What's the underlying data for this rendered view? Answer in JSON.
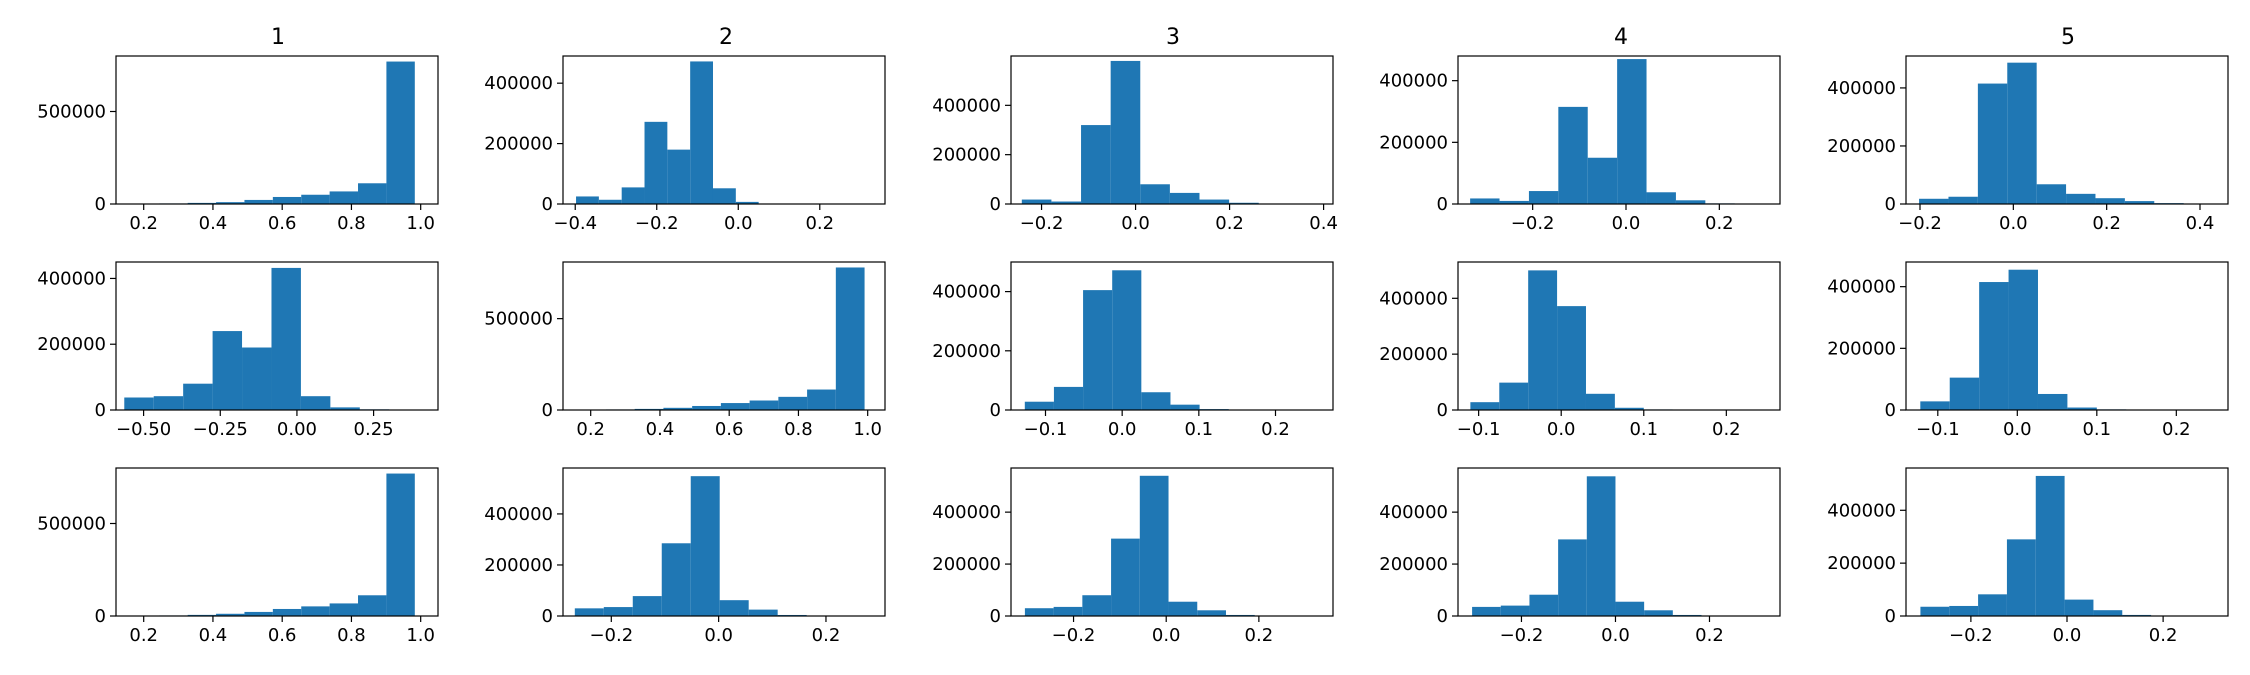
{
  "column_titles": [
    "1",
    "2",
    "3",
    "4",
    "5"
  ],
  "bar_color": "#1f77b4",
  "chart_data": [
    {
      "type": "bar",
      "row": 0,
      "col": 0,
      "title": "1",
      "xlim": [
        0.12,
        1.05
      ],
      "ylim": [
        0,
        800000
      ],
      "xticks": [
        0.2,
        0.4,
        0.6,
        0.8,
        1.0
      ],
      "xtick_labels": [
        "0.2",
        "0.4",
        "0.6",
        "0.8",
        "1.0"
      ],
      "yticks": [
        0,
        500000
      ],
      "ytick_labels": [
        "0",
        "500000"
      ],
      "bin_edges": [
        0.163,
        0.245,
        0.327,
        0.409,
        0.491,
        0.573,
        0.655,
        0.737,
        0.819,
        0.901,
        0.983
      ],
      "values": [
        2000,
        3000,
        6000,
        10000,
        22000,
        38000,
        50000,
        68000,
        112000,
        770000
      ]
    },
    {
      "type": "bar",
      "row": 0,
      "col": 1,
      "title": "2",
      "xlim": [
        -0.43,
        0.36
      ],
      "ylim": [
        0,
        490000
      ],
      "xticks": [
        -0.4,
        -0.2,
        0.0,
        0.2
      ],
      "xtick_labels": [
        "−0.4",
        "−0.2",
        "0.0",
        "0.2"
      ],
      "yticks": [
        0,
        200000,
        400000
      ],
      "ytick_labels": [
        "0",
        "200000",
        "400000"
      ],
      "bin_edges": [
        -0.398,
        -0.342,
        -0.286,
        -0.23,
        -0.174,
        -0.118,
        -0.062,
        -0.006,
        0.05,
        0.106,
        0.162
      ],
      "values": [
        25000,
        14000,
        55000,
        272000,
        180000,
        472000,
        52000,
        7000,
        1000,
        500
      ]
    },
    {
      "type": "bar",
      "row": 0,
      "col": 2,
      "title": "3",
      "xlim": [
        -0.265,
        0.42
      ],
      "ylim": [
        0,
        600000
      ],
      "xticks": [
        -0.2,
        0.0,
        0.2,
        0.4
      ],
      "xtick_labels": [
        "−0.2",
        "0.0",
        "0.2",
        "0.4"
      ],
      "yticks": [
        0,
        200000,
        400000
      ],
      "ytick_labels": [
        "0",
        "200000",
        "400000"
      ],
      "bin_edges": [
        -0.242,
        -0.179,
        -0.116,
        -0.053,
        0.01,
        0.073,
        0.136,
        0.199,
        0.262,
        0.325,
        0.388
      ],
      "values": [
        18000,
        10000,
        320000,
        580000,
        80000,
        45000,
        18000,
        5000,
        2000,
        1000
      ]
    },
    {
      "type": "bar",
      "row": 0,
      "col": 3,
      "title": "4",
      "xlim": [
        -0.36,
        0.33
      ],
      "ylim": [
        0,
        480000
      ],
      "xticks": [
        -0.2,
        0.0,
        0.2
      ],
      "xtick_labels": [
        "−0.2",
        "0.0",
        "0.2"
      ],
      "yticks": [
        0,
        200000,
        400000
      ],
      "ytick_labels": [
        "0",
        "200000",
        "400000"
      ],
      "bin_edges": [
        -0.334,
        -0.271,
        -0.208,
        -0.145,
        -0.082,
        -0.019,
        0.044,
        0.107,
        0.17,
        0.233,
        0.296
      ],
      "values": [
        18000,
        10000,
        42000,
        315000,
        150000,
        470000,
        38000,
        12000,
        2000,
        1000
      ]
    },
    {
      "type": "bar",
      "row": 0,
      "col": 4,
      "title": "5",
      "xlim": [
        -0.23,
        0.46
      ],
      "ylim": [
        0,
        510000
      ],
      "xticks": [
        -0.2,
        0.0,
        0.2,
        0.4
      ],
      "xtick_labels": [
        "−0.2",
        "0.0",
        "0.2",
        "0.4"
      ],
      "yticks": [
        0,
        200000,
        400000
      ],
      "ytick_labels": [
        "0",
        "200000",
        "400000"
      ],
      "bin_edges": [
        -0.202,
        -0.139,
        -0.076,
        -0.013,
        0.05,
        0.113,
        0.176,
        0.239,
        0.302,
        0.365,
        0.428
      ],
      "values": [
        18000,
        25000,
        415000,
        487000,
        68000,
        35000,
        20000,
        10000,
        3000,
        1000
      ]
    },
    {
      "type": "bar",
      "row": 1,
      "col": 0,
      "title": "",
      "xlim": [
        -0.59,
        0.46
      ],
      "ylim": [
        0,
        450000
      ],
      "xticks": [
        -0.5,
        -0.25,
        0.0,
        0.25
      ],
      "xtick_labels": [
        "−0.50",
        "−0.25",
        "0.00",
        "0.25"
      ],
      "yticks": [
        0,
        200000,
        400000
      ],
      "ytick_labels": [
        "0",
        "200000",
        "400000"
      ],
      "bin_edges": [
        -0.563,
        -0.467,
        -0.371,
        -0.275,
        -0.179,
        -0.083,
        0.013,
        0.109,
        0.205,
        0.301,
        0.397
      ],
      "values": [
        38000,
        42000,
        80000,
        240000,
        190000,
        432000,
        42000,
        8000,
        2000,
        500
      ]
    },
    {
      "type": "bar",
      "row": 1,
      "col": 1,
      "title": "",
      "xlim": [
        0.12,
        1.05
      ],
      "ylim": [
        0,
        810000
      ],
      "xticks": [
        0.2,
        0.4,
        0.6,
        0.8,
        1.0
      ],
      "xtick_labels": [
        "0.2",
        "0.4",
        "0.6",
        "0.8",
        "1.0"
      ],
      "yticks": [
        0,
        500000
      ],
      "ytick_labels": [
        "0",
        "500000"
      ],
      "bin_edges": [
        0.161,
        0.244,
        0.327,
        0.41,
        0.493,
        0.576,
        0.659,
        0.742,
        0.825,
        0.908,
        0.991
      ],
      "values": [
        2000,
        3000,
        6000,
        12000,
        22000,
        38000,
        52000,
        72000,
        112000,
        780000
      ]
    },
    {
      "type": "bar",
      "row": 1,
      "col": 2,
      "title": "",
      "xlim": [
        -0.145,
        0.275
      ],
      "ylim": [
        0,
        500000
      ],
      "xticks": [
        -0.1,
        0.0,
        0.1,
        0.2
      ],
      "xtick_labels": [
        "−0.1",
        "0.0",
        "0.1",
        "0.2"
      ],
      "yticks": [
        0,
        200000,
        400000
      ],
      "ytick_labels": [
        "0",
        "200000",
        "400000"
      ],
      "bin_edges": [
        -0.127,
        -0.089,
        -0.051,
        -0.013,
        0.025,
        0.063,
        0.101,
        0.139,
        0.177,
        0.215,
        0.253
      ],
      "values": [
        28000,
        78000,
        405000,
        472000,
        60000,
        18000,
        3000,
        1000,
        500,
        300
      ]
    },
    {
      "type": "bar",
      "row": 1,
      "col": 3,
      "title": "",
      "xlim": [
        -0.125,
        0.265
      ],
      "ylim": [
        0,
        530000
      ],
      "xticks": [
        -0.1,
        0.0,
        0.1,
        0.2
      ],
      "xtick_labels": [
        "−0.1",
        "0.0",
        "0.1",
        "0.2"
      ],
      "yticks": [
        0,
        200000,
        400000
      ],
      "ytick_labels": [
        "0",
        "200000",
        "400000"
      ],
      "bin_edges": [
        -0.11,
        -0.075,
        -0.04,
        -0.005,
        0.03,
        0.065,
        0.1,
        0.135,
        0.17,
        0.205,
        0.24
      ],
      "values": [
        28000,
        98000,
        500000,
        372000,
        58000,
        8000,
        2000,
        1000,
        500,
        300
      ]
    },
    {
      "type": "bar",
      "row": 1,
      "col": 4,
      "title": "",
      "xlim": [
        -0.14,
        0.265
      ],
      "ylim": [
        0,
        480000
      ],
      "xticks": [
        -0.1,
        0.0,
        0.1,
        0.2
      ],
      "xtick_labels": [
        "−0.1",
        "0.0",
        "0.1",
        "0.2"
      ],
      "yticks": [
        0,
        200000,
        400000
      ],
      "ytick_labels": [
        "0",
        "200000",
        "400000"
      ],
      "bin_edges": [
        -0.122,
        -0.085,
        -0.048,
        -0.011,
        0.026,
        0.063,
        0.1,
        0.137,
        0.174,
        0.211,
        0.248
      ],
      "values": [
        28000,
        105000,
        415000,
        455000,
        52000,
        8000,
        2000,
        1000,
        500,
        300
      ]
    },
    {
      "type": "bar",
      "row": 2,
      "col": 0,
      "title": "",
      "xlim": [
        0.12,
        1.05
      ],
      "ylim": [
        0,
        800000
      ],
      "xticks": [
        0.2,
        0.4,
        0.6,
        0.8,
        1.0
      ],
      "xtick_labels": [
        "0.2",
        "0.4",
        "0.6",
        "0.8",
        "1.0"
      ],
      "yticks": [
        0,
        500000
      ],
      "ytick_labels": [
        "0",
        "500000"
      ],
      "bin_edges": [
        0.163,
        0.245,
        0.327,
        0.409,
        0.491,
        0.573,
        0.655,
        0.737,
        0.819,
        0.901,
        0.983
      ],
      "values": [
        2000,
        3000,
        6000,
        12000,
        22000,
        38000,
        52000,
        68000,
        112000,
        770000
      ]
    },
    {
      "type": "bar",
      "row": 2,
      "col": 1,
      "title": "",
      "xlim": [
        -0.29,
        0.31
      ],
      "ylim": [
        0,
        580000
      ],
      "xticks": [
        -0.2,
        0.0,
        0.2
      ],
      "xtick_labels": [
        "−0.2",
        "0.0",
        "0.2"
      ],
      "yticks": [
        0,
        200000,
        400000
      ],
      "ytick_labels": [
        "0",
        "200000",
        "400000"
      ],
      "bin_edges": [
        -0.268,
        -0.214,
        -0.16,
        -0.106,
        -0.052,
        0.002,
        0.056,
        0.11,
        0.164,
        0.218,
        0.272
      ],
      "values": [
        30000,
        35000,
        78000,
        285000,
        548000,
        62000,
        25000,
        4000,
        1000,
        500
      ]
    },
    {
      "type": "bar",
      "row": 2,
      "col": 2,
      "title": "",
      "xlim": [
        -0.335,
        0.36
      ],
      "ylim": [
        0,
        570000
      ],
      "xticks": [
        -0.2,
        0.0,
        0.2
      ],
      "xtick_labels": [
        "−0.2",
        "0.0",
        "0.2"
      ],
      "yticks": [
        0,
        200000,
        400000
      ],
      "ytick_labels": [
        "0",
        "200000",
        "400000"
      ],
      "bin_edges": [
        -0.305,
        -0.243,
        -0.181,
        -0.119,
        -0.057,
        0.005,
        0.067,
        0.129,
        0.191,
        0.253,
        0.315
      ],
      "values": [
        30000,
        35000,
        80000,
        298000,
        540000,
        55000,
        22000,
        4000,
        1000,
        500
      ]
    },
    {
      "type": "bar",
      "row": 2,
      "col": 3,
      "title": "",
      "xlim": [
        -0.335,
        0.35
      ],
      "ylim": [
        0,
        570000
      ],
      "xticks": [
        -0.2,
        0.0,
        0.2
      ],
      "xtick_labels": [
        "−0.2",
        "0.0",
        "0.2"
      ],
      "yticks": [
        0,
        200000,
        400000
      ],
      "ytick_labels": [
        "0",
        "200000",
        "400000"
      ],
      "bin_edges": [
        -0.305,
        -0.244,
        -0.183,
        -0.122,
        -0.061,
        0.0,
        0.061,
        0.122,
        0.183,
        0.244,
        0.305
      ],
      "values": [
        35000,
        40000,
        82000,
        295000,
        538000,
        55000,
        22000,
        4000,
        1000,
        500
      ]
    },
    {
      "type": "bar",
      "row": 2,
      "col": 4,
      "title": "",
      "xlim": [
        -0.335,
        0.335
      ],
      "ylim": [
        0,
        560000
      ],
      "xticks": [
        -0.2,
        0.0,
        0.2
      ],
      "xtick_labels": [
        "−0.2",
        "0.0",
        "0.2"
      ],
      "yticks": [
        0,
        200000,
        400000
      ],
      "ytick_labels": [
        "0",
        "200000",
        "400000"
      ],
      "bin_edges": [
        -0.305,
        -0.245,
        -0.185,
        -0.125,
        -0.065,
        -0.005,
        0.055,
        0.115,
        0.175,
        0.235,
        0.295
      ],
      "values": [
        35000,
        38000,
        82000,
        290000,
        530000,
        62000,
        22000,
        4000,
        1000,
        500
      ]
    }
  ]
}
